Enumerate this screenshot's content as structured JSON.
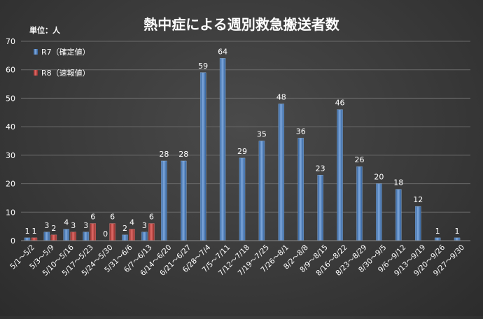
{
  "chart_data": {
    "type": "bar",
    "title": "熱中症による週別救急搬送者数",
    "unit_label": "単位：人",
    "ylim": [
      0,
      70
    ],
    "y_ticks": [
      0,
      10,
      20,
      30,
      40,
      50,
      60,
      70
    ],
    "grid": true,
    "legend_position": "top-left",
    "categories": [
      "5/1～5/2",
      "5/3～5/9",
      "5/10～5/16",
      "5/17～5/23",
      "5/24～5/30",
      "5/31～6/6",
      "6/7～6/13",
      "6/14～6/20",
      "6/21～6/27",
      "6/28～7/4",
      "7/5～7/11",
      "7/12～7/18",
      "7/19～7/25",
      "7/26～8/1",
      "8/2～8/8",
      "8/9～8/15",
      "8/16～8/22",
      "8/23～8/29",
      "8/30～9/5",
      "9/6～9/12",
      "9/13～9/19",
      "9/20～9/26",
      "9/27～9/30"
    ],
    "series": [
      {
        "name": "R7（確定値）",
        "color": "#4f81bd",
        "values": [
          1,
          3,
          4,
          3,
          0,
          2,
          3,
          28,
          28,
          59,
          64,
          29,
          35,
          48,
          36,
          23,
          46,
          26,
          20,
          18,
          12,
          1,
          1
        ]
      },
      {
        "name": "R8（速報値）",
        "color": "#c0504d",
        "values": [
          1,
          2,
          3,
          6,
          6,
          4,
          6,
          null,
          null,
          null,
          null,
          null,
          null,
          null,
          null,
          null,
          null,
          null,
          null,
          null,
          null,
          null,
          null
        ]
      }
    ]
  }
}
